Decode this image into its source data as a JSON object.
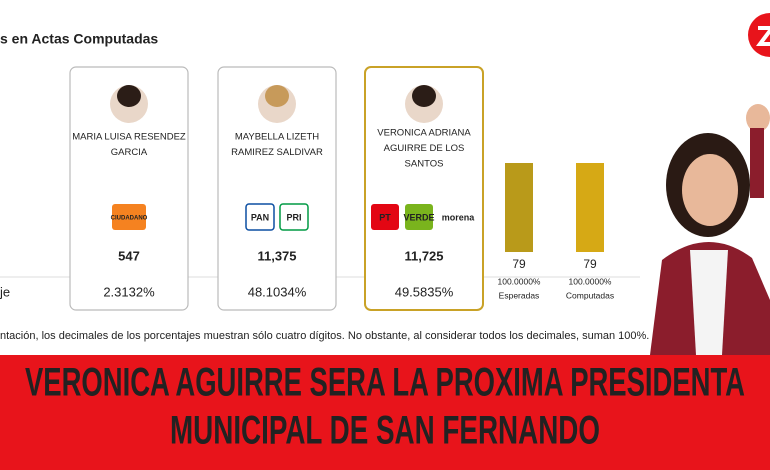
{
  "header": {
    "title": "s en Actas Computadas"
  },
  "row_label": "je",
  "candidates": [
    {
      "name_lines": [
        "MARIA LUISA RESENDEZ",
        "GARCIA"
      ],
      "parties": [
        "CIUDADANO"
      ],
      "votes": "547",
      "percent": "2.3132%"
    },
    {
      "name_lines": [
        "MAYBELLA LIZETH",
        "RAMIREZ SALDIVAR"
      ],
      "parties": [
        "PAN",
        "PRI"
      ],
      "votes": "11,375",
      "percent": "48.1034%"
    },
    {
      "name_lines": [
        "VERONICA ADRIANA",
        "AGUIRRE DE LOS",
        "SANTOS"
      ],
      "parties": [
        "PT",
        "VERDE",
        "morena"
      ],
      "votes": "11,725",
      "percent": "49.5835%"
    }
  ],
  "totals": [
    {
      "count": "79",
      "percent": "100.0000%",
      "label": "Esperadas"
    },
    {
      "count": "79",
      "percent": "100.0000%",
      "label": "Computadas"
    }
  ],
  "footnote": "ntación, los decimales de los porcentajes muestran sólo cuatro dígitos. No obstante, al considerar todos los decimales, suman 100%.",
  "headline": {
    "lines": [
      "VERONICA AGUIRRE SERA LA PROXIMA PRESIDENTA",
      "MUNICIPAL DE SAN FERNANDO"
    ]
  }
}
